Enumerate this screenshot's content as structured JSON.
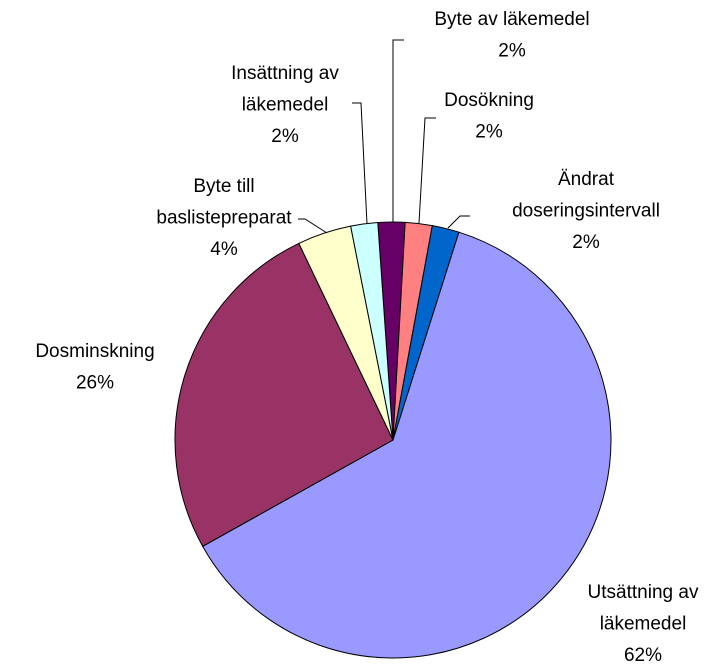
{
  "chart_data": {
    "type": "pie",
    "categories": [
      "Byte av läkemedel",
      "Dosökning",
      "Ändrat doseringsintervall",
      "Utsättning av läkemedel",
      "Dosminskning",
      "Byte till baslistepreparat",
      "Insättning av läkemedel"
    ],
    "values": [
      2,
      2,
      2,
      62,
      26,
      4,
      2
    ],
    "value_labels": [
      "2%",
      "2%",
      "2%",
      "62%",
      "26%",
      "4%",
      "2%"
    ],
    "colors": [
      "#660066",
      "#FF8080",
      "#0066CC",
      "#9999FF",
      "#993366",
      "#FFFFCC",
      "#CCFFFF"
    ]
  }
}
